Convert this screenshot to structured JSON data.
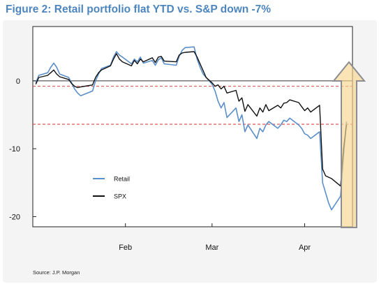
{
  "chart_data": {
    "type": "line",
    "title": "Figure 2: Retail portfolio flat YTD vs. S&P down -7%",
    "xlabel": "",
    "ylabel": "",
    "x_tick_labels": [
      "Feb",
      "Mar",
      "Apr"
    ],
    "y_tick_labels": [
      "0",
      "-10",
      "-20"
    ],
    "y_ticks": [
      0,
      -10,
      -20
    ],
    "ylim": [
      -21.5,
      8
    ],
    "x_range": [
      "2020-01-01",
      "2020-04-17"
    ],
    "x_ticks": [
      "2020-02-01",
      "2020-03-01",
      "2020-04-01"
    ],
    "reference_lines": [
      -0.8,
      -6.4
    ],
    "arrow_label": "",
    "grid": false,
    "legend_position": "lower-left",
    "series": [
      {
        "name": "Retail",
        "color": "#5b8fc9",
        "points": [
          [
            "2020-01-02",
            -0.3
          ],
          [
            "2020-01-03",
            0.8
          ],
          [
            "2020-01-06",
            1.2
          ],
          [
            "2020-01-07",
            2.0
          ],
          [
            "2020-01-08",
            2.6
          ],
          [
            "2020-01-09",
            2.0
          ],
          [
            "2020-01-10",
            1.0
          ],
          [
            "2020-01-13",
            0.5
          ],
          [
            "2020-01-14",
            -0.3
          ],
          [
            "2020-01-15",
            -1.2
          ],
          [
            "2020-01-16",
            -1.8
          ],
          [
            "2020-01-17",
            -2.2
          ],
          [
            "2020-01-21",
            -1.5
          ],
          [
            "2020-01-22",
            0.0
          ],
          [
            "2020-01-23",
            1.0
          ],
          [
            "2020-01-24",
            1.8
          ],
          [
            "2020-01-27",
            2.3
          ],
          [
            "2020-01-28",
            3.5
          ],
          [
            "2020-01-29",
            4.3
          ],
          [
            "2020-01-30",
            3.8
          ],
          [
            "2020-01-31",
            3.5
          ],
          [
            "2020-02-03",
            2.5
          ],
          [
            "2020-02-04",
            3.2
          ],
          [
            "2020-02-05",
            2.8
          ],
          [
            "2020-02-06",
            3.5
          ],
          [
            "2020-02-07",
            2.6
          ],
          [
            "2020-02-10",
            3.0
          ],
          [
            "2020-02-11",
            2.3
          ],
          [
            "2020-02-12",
            3.1
          ],
          [
            "2020-02-13",
            3.4
          ],
          [
            "2020-02-14",
            2.5
          ],
          [
            "2020-02-18",
            2.3
          ],
          [
            "2020-02-19",
            3.6
          ],
          [
            "2020-02-20",
            4.5
          ],
          [
            "2020-02-21",
            4.9
          ],
          [
            "2020-02-24",
            5.0
          ],
          [
            "2020-02-25",
            3.2
          ],
          [
            "2020-02-26",
            2.0
          ],
          [
            "2020-02-27",
            1.0
          ],
          [
            "2020-02-28",
            0.5
          ],
          [
            "2020-03-01",
            -0.5
          ],
          [
            "2020-03-02",
            -1.5
          ],
          [
            "2020-03-03",
            -3.0
          ],
          [
            "2020-03-04",
            -4.0
          ],
          [
            "2020-03-05",
            -3.2
          ],
          [
            "2020-03-06",
            -5.4
          ],
          [
            "2020-03-09",
            -4.0
          ],
          [
            "2020-03-10",
            -6.0
          ],
          [
            "2020-03-11",
            -5.0
          ],
          [
            "2020-03-12",
            -7.5
          ],
          [
            "2020-03-13",
            -6.5
          ],
          [
            "2020-03-16",
            -8.5
          ],
          [
            "2020-03-17",
            -7.0
          ],
          [
            "2020-03-18",
            -7.5
          ],
          [
            "2020-03-19",
            -6.5
          ],
          [
            "2020-03-20",
            -6.0
          ],
          [
            "2020-03-23",
            -7.0
          ],
          [
            "2020-03-24",
            -6.5
          ],
          [
            "2020-03-25",
            -5.8
          ],
          [
            "2020-03-26",
            -6.0
          ],
          [
            "2020-03-27",
            -5.5
          ],
          [
            "2020-03-30",
            -6.5
          ],
          [
            "2020-03-31",
            -7.0
          ],
          [
            "2020-04-01",
            -7.8
          ],
          [
            "2020-04-02",
            -8.0
          ],
          [
            "2020-04-03",
            -8.5
          ],
          [
            "2020-04-06",
            -7.5
          ],
          [
            "2020-04-07",
            -15.0
          ],
          [
            "2020-04-08",
            -16.5
          ],
          [
            "2020-04-09",
            -18.0
          ],
          [
            "2020-04-10",
            -19.0
          ],
          [
            "2020-04-13",
            -17.0
          ],
          [
            "2020-04-14",
            -11.0
          ],
          [
            "2020-04-15",
            -6.0
          ]
        ]
      },
      {
        "name": "SPX",
        "color": "#111111",
        "points": [
          [
            "2020-01-02",
            -0.5
          ],
          [
            "2020-01-03",
            0.5
          ],
          [
            "2020-01-06",
            0.8
          ],
          [
            "2020-01-07",
            1.2
          ],
          [
            "2020-01-08",
            1.6
          ],
          [
            "2020-01-09",
            1.0
          ],
          [
            "2020-01-10",
            0.6
          ],
          [
            "2020-01-13",
            0.2
          ],
          [
            "2020-01-14",
            -0.4
          ],
          [
            "2020-01-15",
            -0.8
          ],
          [
            "2020-01-16",
            -1.0
          ],
          [
            "2020-01-17",
            -0.9
          ],
          [
            "2020-01-21",
            -0.6
          ],
          [
            "2020-01-22",
            0.5
          ],
          [
            "2020-01-23",
            1.2
          ],
          [
            "2020-01-24",
            1.6
          ],
          [
            "2020-01-27",
            2.2
          ],
          [
            "2020-01-28",
            3.2
          ],
          [
            "2020-01-29",
            4.0
          ],
          [
            "2020-01-30",
            3.2
          ],
          [
            "2020-01-31",
            2.8
          ],
          [
            "2020-02-03",
            2.2
          ],
          [
            "2020-02-04",
            3.0
          ],
          [
            "2020-02-05",
            2.5
          ],
          [
            "2020-02-06",
            3.2
          ],
          [
            "2020-02-07",
            2.8
          ],
          [
            "2020-02-10",
            3.4
          ],
          [
            "2020-02-11",
            2.7
          ],
          [
            "2020-02-12",
            3.5
          ],
          [
            "2020-02-13",
            3.6
          ],
          [
            "2020-02-14",
            2.9
          ],
          [
            "2020-02-18",
            2.8
          ],
          [
            "2020-02-19",
            3.8
          ],
          [
            "2020-02-20",
            4.1
          ],
          [
            "2020-02-21",
            4.2
          ],
          [
            "2020-02-24",
            4.3
          ],
          [
            "2020-02-25",
            3.5
          ],
          [
            "2020-02-26",
            2.5
          ],
          [
            "2020-02-27",
            1.5
          ],
          [
            "2020-02-28",
            0.5
          ],
          [
            "2020-03-01",
            -0.3
          ],
          [
            "2020-03-02",
            -0.8
          ],
          [
            "2020-03-03",
            -0.6
          ],
          [
            "2020-03-04",
            -1.2
          ],
          [
            "2020-03-05",
            -0.8
          ],
          [
            "2020-03-06",
            -1.8
          ],
          [
            "2020-03-09",
            -1.4
          ],
          [
            "2020-03-10",
            -3.0
          ],
          [
            "2020-03-11",
            -2.5
          ],
          [
            "2020-03-12",
            -4.5
          ],
          [
            "2020-03-13",
            -3.5
          ],
          [
            "2020-03-16",
            -5.2
          ],
          [
            "2020-03-17",
            -4.0
          ],
          [
            "2020-03-18",
            -4.6
          ],
          [
            "2020-03-19",
            -3.5
          ],
          [
            "2020-03-20",
            -4.4
          ],
          [
            "2020-03-23",
            -3.6
          ],
          [
            "2020-03-24",
            -4.0
          ],
          [
            "2020-03-25",
            -3.3
          ],
          [
            "2020-03-26",
            -3.2
          ],
          [
            "2020-03-27",
            -2.8
          ],
          [
            "2020-03-30",
            -3.2
          ],
          [
            "2020-03-31",
            -3.8
          ],
          [
            "2020-04-01",
            -4.4
          ],
          [
            "2020-04-02",
            -4.0
          ],
          [
            "2020-04-03",
            -4.6
          ],
          [
            "2020-04-06",
            -3.6
          ],
          [
            "2020-04-07",
            -13.0
          ],
          [
            "2020-04-08",
            -14.0
          ],
          [
            "2020-04-09",
            -14.2
          ],
          [
            "2020-04-10",
            -14.4
          ],
          [
            "2020-04-13",
            -15.5
          ],
          [
            "2020-04-14",
            -10.0
          ],
          [
            "2020-04-15",
            -6.5
          ]
        ]
      }
    ]
  },
  "source_note": "Source: J.P. Morgan",
  "colors": {
    "title": "#4d86be",
    "reference_line": "#e04040",
    "arrow_fill": "#f8d48e",
    "arrow_stroke": "#8b8d92"
  }
}
